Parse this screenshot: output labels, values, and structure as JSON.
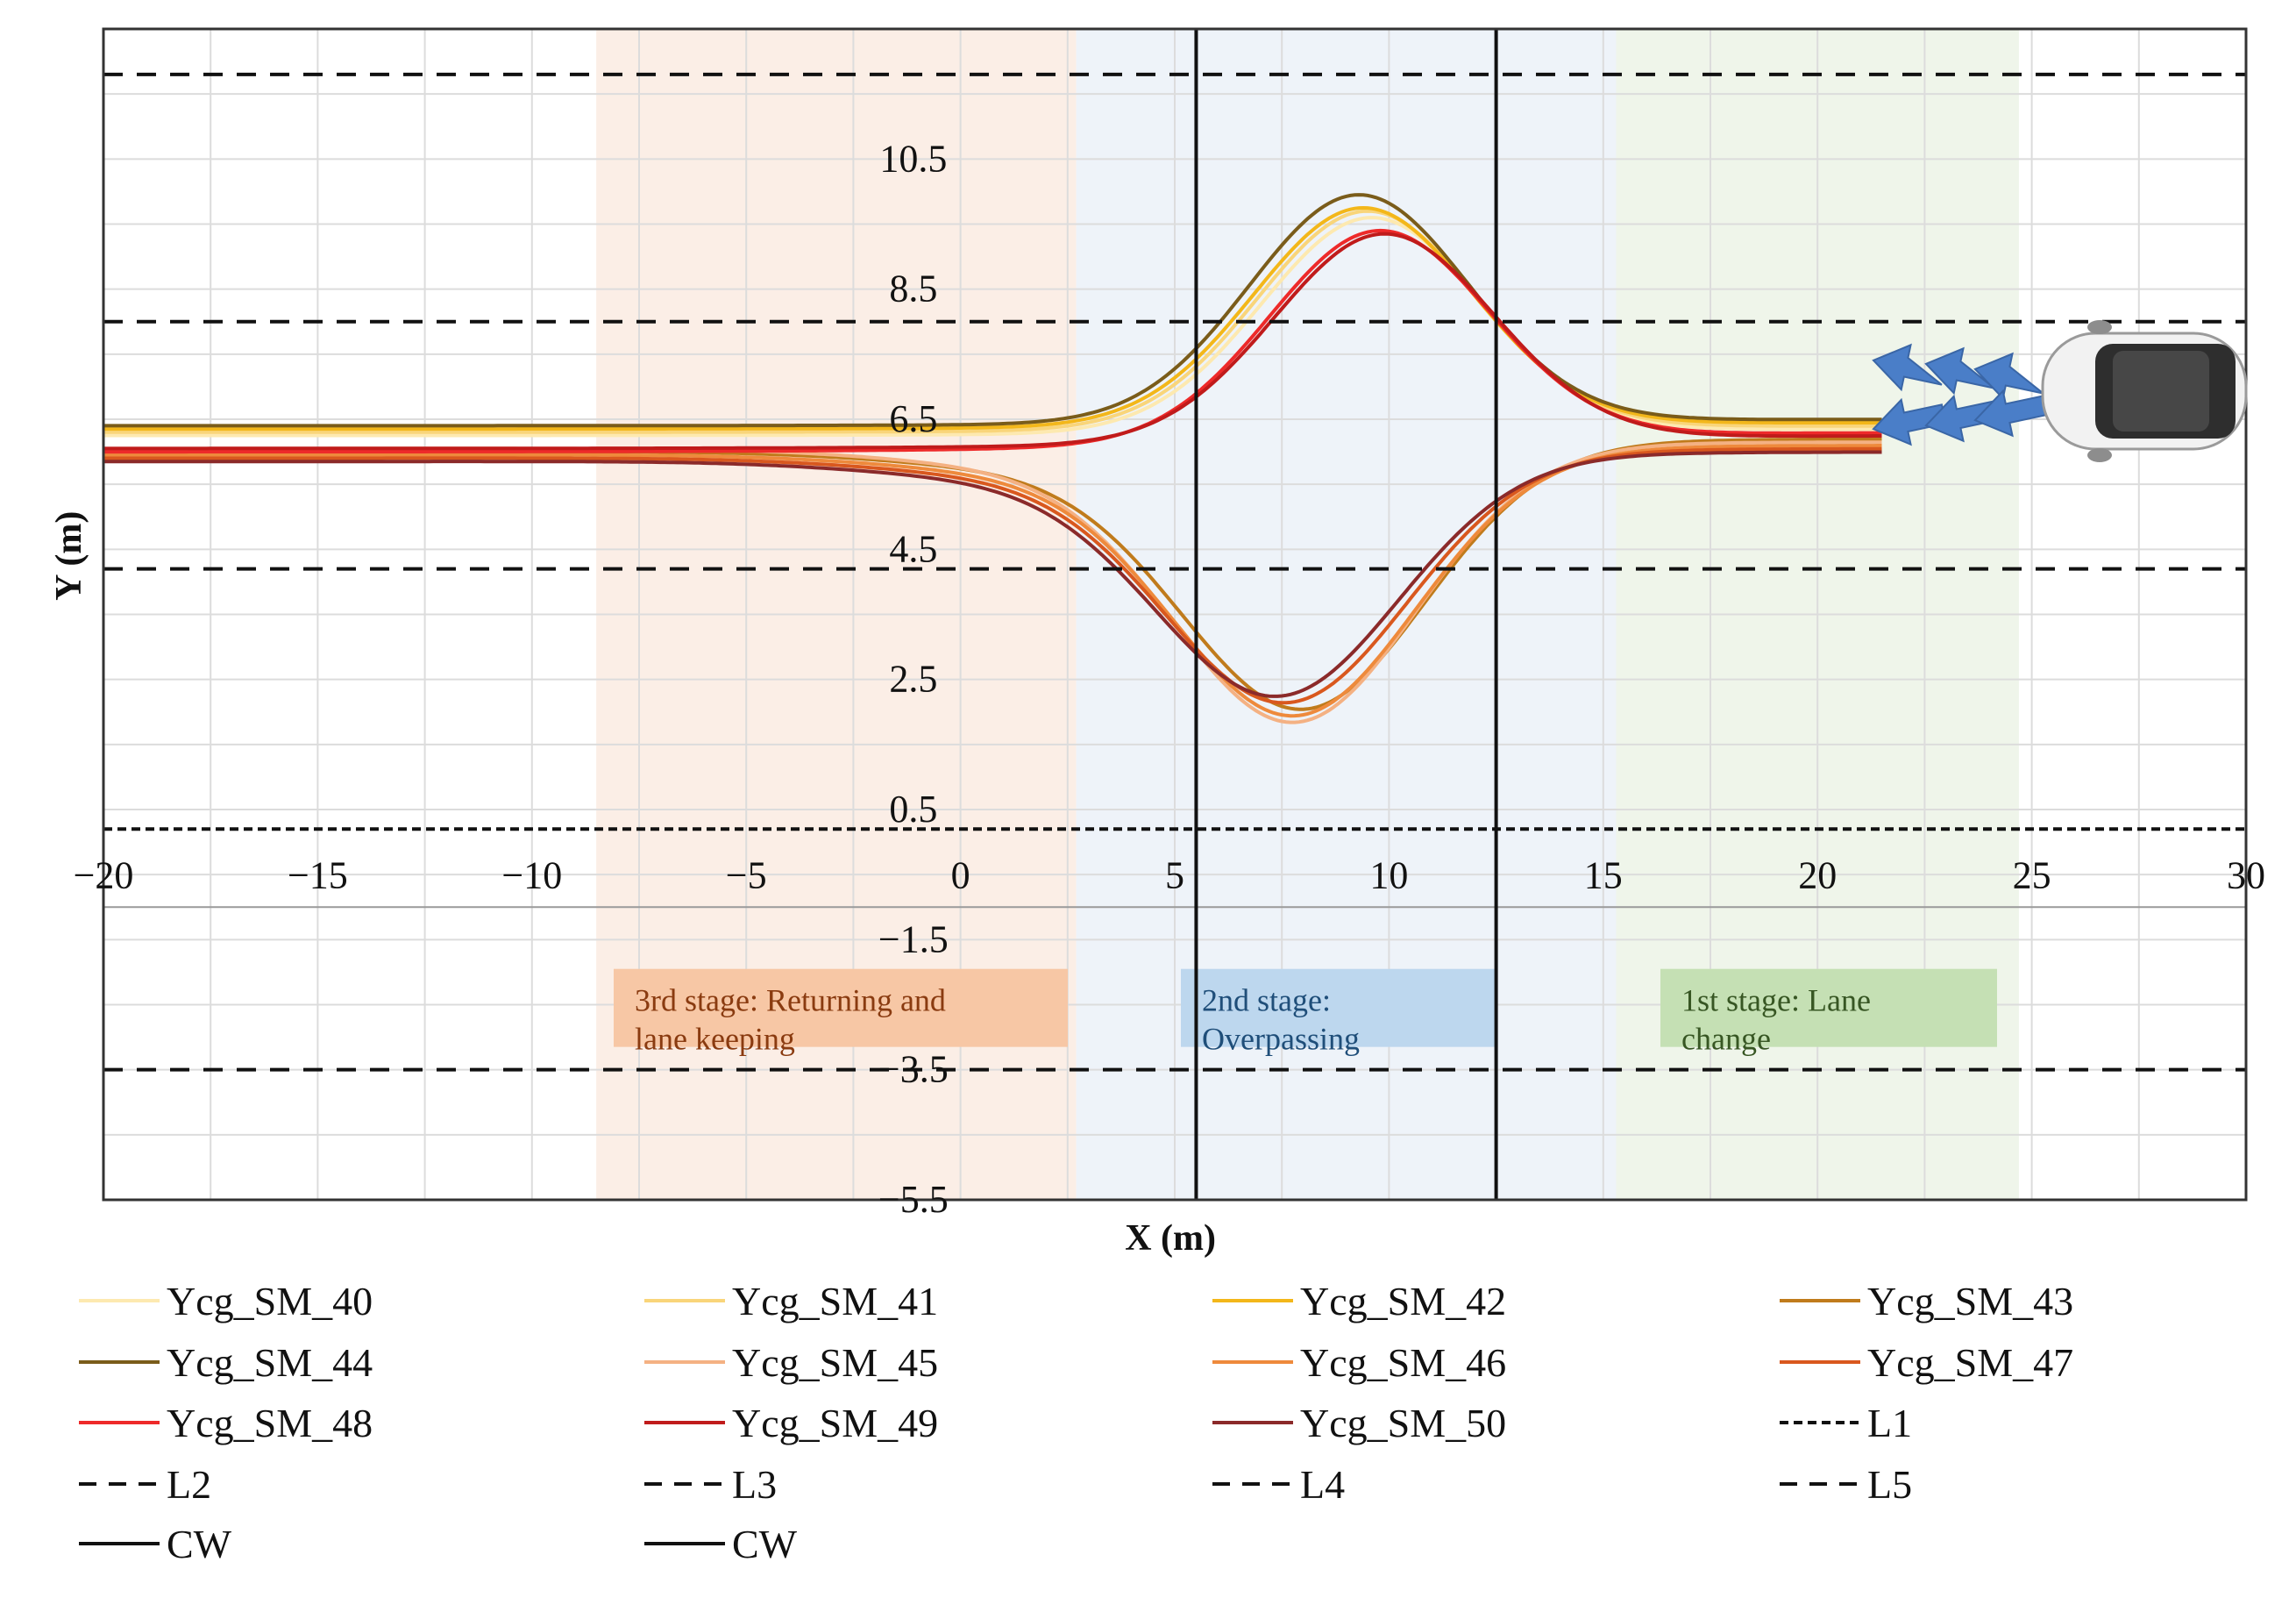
{
  "chart_data": {
    "type": "line",
    "title": "",
    "xlabel": "X (m)",
    "ylabel": "Y (m)",
    "xlim": [
      -20,
      30
    ],
    "ylim": [
      -5.5,
      12.5
    ],
    "xticks": [
      -20,
      -15,
      -10,
      -5,
      0,
      5,
      10,
      15,
      20,
      25,
      30
    ],
    "xtick_labels": [
      "−20",
      "−15",
      "−10",
      "−5",
      "0",
      "5",
      "10",
      "15",
      "20",
      "25",
      "30"
    ],
    "yticks": [
      10.5,
      8.5,
      6.5,
      4.5,
      2.5,
      0.5,
      -1.5,
      -3.5,
      -5.5
    ],
    "ytick_labels": [
      "10.5",
      "8.5",
      "6.5",
      "4.5",
      "2.5",
      "0.5",
      "−1.5",
      "−3.5",
      "−5.5"
    ],
    "x_axis_at_y": -1.0,
    "grid": true,
    "stages": [
      {
        "name": "3rd stage: Returning and lane keeping",
        "line1": "3rd stage: Returning and",
        "line2": "lane keeping",
        "x_range": [
          -8.5,
          2.7
        ],
        "band_color": "#fbeee6",
        "box_color": "#f7c7a5",
        "text_color": "#8a3b10"
      },
      {
        "name": "2nd stage: Overpassing",
        "line1": "2nd stage:",
        "line2": "Overpassing",
        "x_range": [
          2.7,
          15.3
        ],
        "band_color": "#eef3f9",
        "box_color": "#bdd7ee",
        "text_color": "#1f4e79"
      },
      {
        "name": "1st stage: Lane change",
        "line1": "1st stage: Lane",
        "line2": "change",
        "x_range": [
          15.3,
          24.7
        ],
        "band_color": "#eff5ea",
        "box_color": "#c5e0b4",
        "text_color": "#375623"
      }
    ],
    "series": [
      {
        "name": "Ycg_SM_40",
        "color": "#fde9b0",
        "group": "upper",
        "start_y": 6.25,
        "peak_x": 9.6,
        "peak_y": 9.6,
        "end_y": 6.35
      },
      {
        "name": "Ycg_SM_41",
        "color": "#f9d57a",
        "group": "upper",
        "start_y": 6.3,
        "peak_x": 9.5,
        "peak_y": 9.7,
        "end_y": 6.4
      },
      {
        "name": "Ycg_SM_42",
        "color": "#f3b71a",
        "group": "upper",
        "start_y": 6.35,
        "peak_x": 9.4,
        "peak_y": 9.75,
        "end_y": 6.45
      },
      {
        "name": "Ycg_SM_43",
        "color": "#c07b1c",
        "group": "lower",
        "start_y": 6.0,
        "trough_x": 8.0,
        "trough_y": 2.1,
        "end_y": 6.2
      },
      {
        "name": "Ycg_SM_44",
        "color": "#7a5c1a",
        "group": "upper",
        "start_y": 6.4,
        "peak_x": 9.3,
        "peak_y": 9.95,
        "end_y": 6.5
      },
      {
        "name": "Ycg_SM_45",
        "color": "#f4b183",
        "group": "lower",
        "start_y": 6.05,
        "trough_x": 7.8,
        "trough_y": 1.9,
        "end_y": 6.15
      },
      {
        "name": "Ycg_SM_46",
        "color": "#ee8a3c",
        "group": "lower",
        "start_y": 5.95,
        "trough_x": 7.8,
        "trough_y": 2.0,
        "end_y": 6.1
      },
      {
        "name": "Ycg_SM_47",
        "color": "#d9581e",
        "group": "lower",
        "start_y": 5.9,
        "trough_x": 7.6,
        "trough_y": 2.2,
        "end_y": 6.05
      },
      {
        "name": "Ycg_SM_48",
        "color": "#ee2a2a",
        "group": "upper",
        "start_y": 6.0,
        "peak_x": 9.8,
        "peak_y": 9.4,
        "end_y": 6.3
      },
      {
        "name": "Ycg_SM_49",
        "color": "#c01b1b",
        "group": "upper",
        "start_y": 6.05,
        "peak_x": 9.9,
        "peak_y": 9.35,
        "end_y": 6.25
      },
      {
        "name": "Ycg_SM_50",
        "color": "#8b2a2a",
        "group": "lower",
        "start_y": 5.85,
        "trough_x": 7.4,
        "trough_y": 2.3,
        "end_y": 6.0
      }
    ],
    "reference_lines": [
      {
        "name": "L1",
        "type": "horizontal",
        "y": 0.2,
        "dash": "short"
      },
      {
        "name": "L2",
        "type": "horizontal",
        "y": 8.0,
        "dash": "long"
      },
      {
        "name": "L3",
        "type": "horizontal",
        "y": 4.2,
        "dash": "long"
      },
      {
        "name": "L4",
        "type": "horizontal",
        "y": -3.5,
        "dash": "long"
      },
      {
        "name": "L5",
        "type": "horizontal",
        "y": 11.8,
        "dash": "long"
      },
      {
        "name": "CW",
        "type": "vertical",
        "x": 5.5,
        "dash": "solid"
      },
      {
        "name": "CW",
        "type": "vertical",
        "x": 12.5,
        "dash": "solid"
      }
    ],
    "legend_columns": 4,
    "legend_placement": "bottom",
    "legend_order": [
      "Ycg_SM_40",
      "Ycg_SM_41",
      "Ycg_SM_42",
      "Ycg_SM_43",
      "Ycg_SM_44",
      "Ycg_SM_45",
      "Ycg_SM_46",
      "Ycg_SM_47",
      "Ycg_SM_48",
      "Ycg_SM_49",
      "Ycg_SM_50",
      "L1",
      "L2",
      "L3",
      "L4",
      "L5",
      "CW",
      "CW"
    ],
    "annotations": {
      "vehicle": "car-icon",
      "arrows": "lane-change-arrows"
    }
  }
}
